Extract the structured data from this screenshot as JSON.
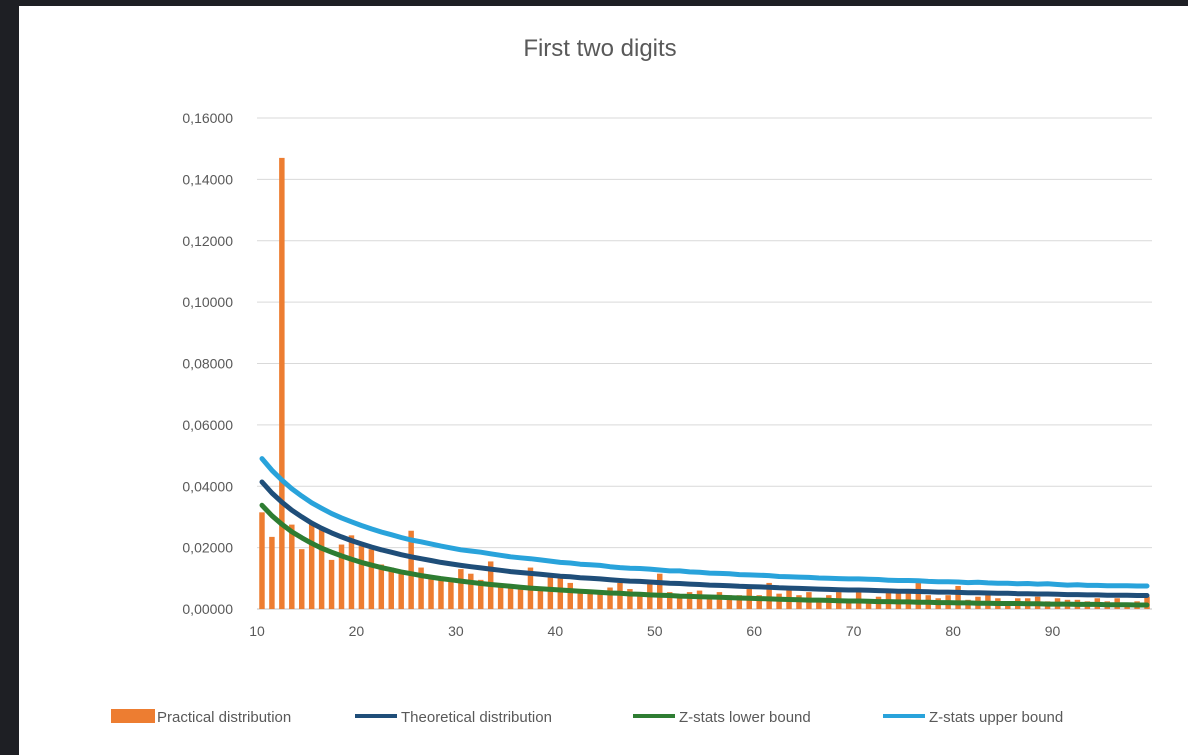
{
  "chart_data": {
    "type": "bar",
    "title": "First two digits",
    "xlabel": "",
    "ylabel": "",
    "ylim": [
      0,
      0.16
    ],
    "yticks": [
      "0,00000",
      "0,02000",
      "0,04000",
      "0,06000",
      "0,08000",
      "0,10000",
      "0,12000",
      "0,14000",
      "0,16000"
    ],
    "xticks": [
      "10",
      "20",
      "30",
      "40",
      "50",
      "60",
      "70",
      "80",
      "90"
    ],
    "grid": true,
    "legend_position": "bottom",
    "categories": [
      10,
      11,
      12,
      13,
      14,
      15,
      16,
      17,
      18,
      19,
      20,
      21,
      22,
      23,
      24,
      25,
      26,
      27,
      28,
      29,
      30,
      31,
      32,
      33,
      34,
      35,
      36,
      37,
      38,
      39,
      40,
      41,
      42,
      43,
      44,
      45,
      46,
      47,
      48,
      49,
      50,
      51,
      52,
      53,
      54,
      55,
      56,
      57,
      58,
      59,
      60,
      61,
      62,
      63,
      64,
      65,
      66,
      67,
      68,
      69,
      70,
      71,
      72,
      73,
      74,
      75,
      76,
      77,
      78,
      79,
      80,
      81,
      82,
      83,
      84,
      85,
      86,
      87,
      88,
      89,
      90,
      91,
      92,
      93,
      94,
      95,
      96,
      97,
      98,
      99
    ],
    "series": [
      {
        "name": "Practical distribution",
        "kind": "bar",
        "color": "#ed7d31",
        "values": [
          0.0315,
          0.0235,
          0.147,
          0.0275,
          0.0195,
          0.028,
          0.026,
          0.016,
          0.021,
          0.024,
          0.0205,
          0.0195,
          0.0145,
          0.0135,
          0.0115,
          0.0255,
          0.0135,
          0.011,
          0.01,
          0.0095,
          0.013,
          0.0115,
          0.0095,
          0.0155,
          0.008,
          0.007,
          0.0065,
          0.0135,
          0.007,
          0.0105,
          0.0105,
          0.0085,
          0.006,
          0.0055,
          0.0055,
          0.007,
          0.0085,
          0.0065,
          0.0055,
          0.0085,
          0.0115,
          0.0055,
          0.0045,
          0.0055,
          0.006,
          0.004,
          0.0055,
          0.0045,
          0.0045,
          0.0065,
          0.0045,
          0.0085,
          0.005,
          0.0065,
          0.0045,
          0.0055,
          0.0035,
          0.0045,
          0.0055,
          0.003,
          0.0055,
          0.003,
          0.004,
          0.0055,
          0.0055,
          0.0055,
          0.0085,
          0.0045,
          0.0035,
          0.0045,
          0.0075,
          0.003,
          0.004,
          0.0045,
          0.0035,
          0.0025,
          0.0035,
          0.0035,
          0.004,
          0.0025,
          0.0035,
          0.003,
          0.003,
          0.0025,
          0.0035,
          0.0025,
          0.0035,
          0.002,
          0.0025,
          0.004
        ]
      },
      {
        "name": "Theoretical distribution",
        "kind": "line",
        "color": "#1f4e79",
        "values": [
          0.0414,
          0.0378,
          0.0348,
          0.0322,
          0.03,
          0.028,
          0.0263,
          0.0248,
          0.0235,
          0.0223,
          0.0212,
          0.0202,
          0.0193,
          0.0185,
          0.0177,
          0.017,
          0.0164,
          0.0158,
          0.0152,
          0.0147,
          0.0142,
          0.0138,
          0.0134,
          0.013,
          0.0126,
          0.0122,
          0.0119,
          0.0116,
          0.0113,
          0.011,
          0.0107,
          0.0105,
          0.0102,
          0.01,
          0.0098,
          0.0095,
          0.0093,
          0.0091,
          0.009,
          0.0088,
          0.0086,
          0.0084,
          0.0083,
          0.0081,
          0.008,
          0.0078,
          0.0077,
          0.0076,
          0.0074,
          0.0073,
          0.0072,
          0.0071,
          0.0069,
          0.0068,
          0.0067,
          0.0066,
          0.0065,
          0.0064,
          0.0063,
          0.0062,
          0.0062,
          0.0061,
          0.006,
          0.0059,
          0.0058,
          0.0058,
          0.0057,
          0.0056,
          0.0055,
          0.0055,
          0.0054,
          0.0053,
          0.0053,
          0.0052,
          0.0051,
          0.0051,
          0.005,
          0.005,
          0.0049,
          0.0049,
          0.0048,
          0.0047,
          0.0047,
          0.0046,
          0.0046,
          0.0045,
          0.0045,
          0.0045,
          0.0044,
          0.0044
        ]
      },
      {
        "name": "Z-stats lower bound",
        "kind": "line",
        "color": "#2e7d32",
        "values": [
          0.0338,
          0.0304,
          0.0276,
          0.0252,
          0.0232,
          0.0214,
          0.0198,
          0.0185,
          0.0173,
          0.0162,
          0.0152,
          0.0143,
          0.0135,
          0.0128,
          0.0121,
          0.0115,
          0.0109,
          0.0104,
          0.0099,
          0.0095,
          0.0091,
          0.0087,
          0.0083,
          0.008,
          0.0077,
          0.0074,
          0.0071,
          0.0068,
          0.0066,
          0.0064,
          0.0062,
          0.006,
          0.0058,
          0.0056,
          0.0054,
          0.0052,
          0.0051,
          0.0049,
          0.0048,
          0.0046,
          0.0045,
          0.0044,
          0.0042,
          0.0041,
          0.004,
          0.0039,
          0.0038,
          0.0037,
          0.0036,
          0.0035,
          0.0034,
          0.0033,
          0.0032,
          0.0031,
          0.003,
          0.0029,
          0.0029,
          0.0028,
          0.0027,
          0.0026,
          0.0026,
          0.0025,
          0.0024,
          0.0024,
          0.0023,
          0.0023,
          0.0022,
          0.0022,
          0.0021,
          0.0021,
          0.002,
          0.002,
          0.0019,
          0.0019,
          0.0018,
          0.0018,
          0.0018,
          0.0017,
          0.0017,
          0.0016,
          0.0016,
          0.0016,
          0.0015,
          0.0015,
          0.0015,
          0.0014,
          0.0014,
          0.0014,
          0.0013,
          0.0013
        ]
      },
      {
        "name": "Z-stats upper bound",
        "kind": "line",
        "color": "#29a3db",
        "values": [
          0.049,
          0.0452,
          0.042,
          0.0392,
          0.0368,
          0.0346,
          0.0328,
          0.0311,
          0.0297,
          0.0284,
          0.0272,
          0.0261,
          0.0251,
          0.0242,
          0.0233,
          0.0225,
          0.0219,
          0.0212,
          0.0205,
          0.0199,
          0.0193,
          0.0189,
          0.0185,
          0.018,
          0.0175,
          0.017,
          0.0167,
          0.0164,
          0.016,
          0.0156,
          0.0152,
          0.015,
          0.0146,
          0.0144,
          0.0142,
          0.0138,
          0.0135,
          0.0133,
          0.0132,
          0.013,
          0.0127,
          0.0124,
          0.0124,
          0.0121,
          0.012,
          0.0117,
          0.0116,
          0.0115,
          0.0112,
          0.0111,
          0.011,
          0.0109,
          0.0106,
          0.0105,
          0.0104,
          0.0103,
          0.0101,
          0.01,
          0.0099,
          0.0098,
          0.0098,
          0.0097,
          0.0096,
          0.0094,
          0.0093,
          0.0093,
          0.0092,
          0.009,
          0.0089,
          0.0089,
          0.0088,
          0.0086,
          0.0087,
          0.0085,
          0.0084,
          0.0084,
          0.0082,
          0.0083,
          0.0081,
          0.0082,
          0.008,
          0.0078,
          0.0079,
          0.0077,
          0.0077,
          0.0076,
          0.0076,
          0.0076,
          0.0075,
          0.0075
        ]
      }
    ]
  }
}
